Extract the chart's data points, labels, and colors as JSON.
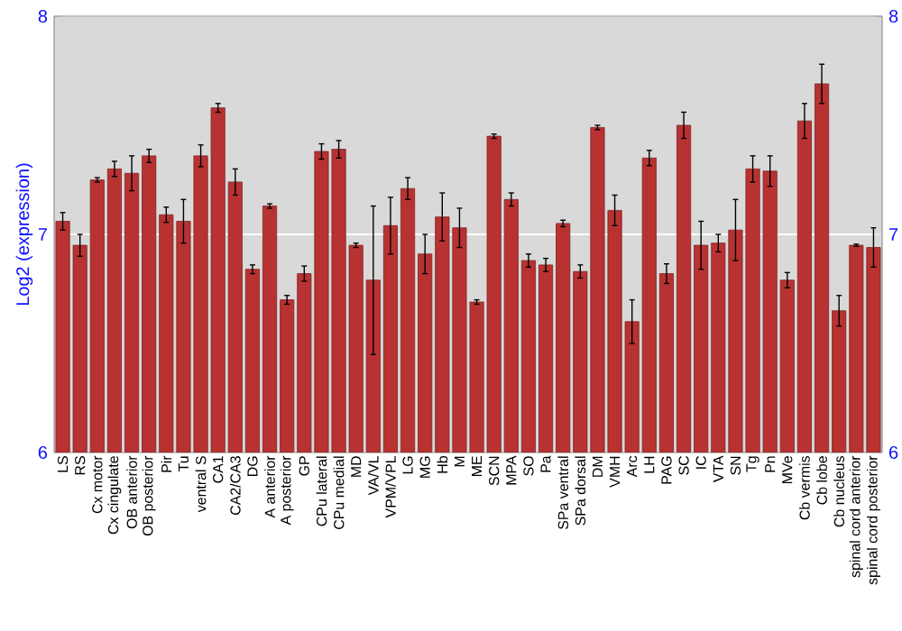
{
  "chart_data": {
    "type": "bar",
    "ylabel": "Log2 (expression)",
    "categories": [
      "LS",
      "RS",
      "Cx motor",
      "Cx cingulate",
      "OB anterior",
      "OB posterior",
      "Pir",
      "Tu",
      "ventral S",
      "CA1",
      "CA2/CA3",
      "DG",
      "A anterior",
      "A posterior",
      "GP",
      "CPu lateral",
      "CPu medial",
      "MD",
      "VA/VL",
      "VPM/VPL",
      "LG",
      "MG",
      "Hb",
      "M",
      "ME",
      "SCN",
      "MPA",
      "SO",
      "Pa",
      "SPa ventral",
      "SPa dorsal",
      "DM",
      "VMH",
      "Arc",
      "LH",
      "PAG",
      "SC",
      "IC",
      "VTA",
      "SN",
      "Tg",
      "Pn",
      "MVe",
      "Cb vermis",
      "Cb lobe",
      "Cb nucleus",
      "spinal cord anterior",
      "spinal cord posterior"
    ],
    "values": [
      7.06,
      6.95,
      7.25,
      7.3,
      7.28,
      7.36,
      7.09,
      7.06,
      7.36,
      7.58,
      7.24,
      6.84,
      7.13,
      6.7,
      6.82,
      7.38,
      7.39,
      6.95,
      6.79,
      7.04,
      7.21,
      6.91,
      7.08,
      7.03,
      6.69,
      7.45,
      7.16,
      6.88,
      6.86,
      7.05,
      6.83,
      7.49,
      7.11,
      6.6,
      7.35,
      6.82,
      7.5,
      6.95,
      6.96,
      7.02,
      7.3,
      7.29,
      6.79,
      7.52,
      7.69,
      6.65,
      6.95,
      6.94
    ],
    "errors": [
      0.04,
      0.05,
      0.01,
      0.035,
      0.08,
      0.03,
      0.035,
      0.1,
      0.05,
      0.02,
      0.06,
      0.02,
      0.01,
      0.02,
      0.035,
      0.035,
      0.04,
      0.01,
      0.34,
      0.13,
      0.05,
      0.09,
      0.11,
      0.09,
      0.01,
      0.01,
      0.03,
      0.03,
      0.03,
      0.015,
      0.03,
      0.01,
      0.07,
      0.1,
      0.035,
      0.045,
      0.06,
      0.11,
      0.04,
      0.14,
      0.06,
      0.07,
      0.035,
      0.08,
      0.09,
      0.07,
      0.005,
      0.09
    ],
    "color": "#b83232",
    "ylim": [
      6,
      8
    ],
    "yticks": [
      6,
      7,
      8
    ],
    "y2lim": [
      6,
      8
    ],
    "y2ticks": [
      6,
      7,
      8
    ],
    "grid": "y"
  }
}
